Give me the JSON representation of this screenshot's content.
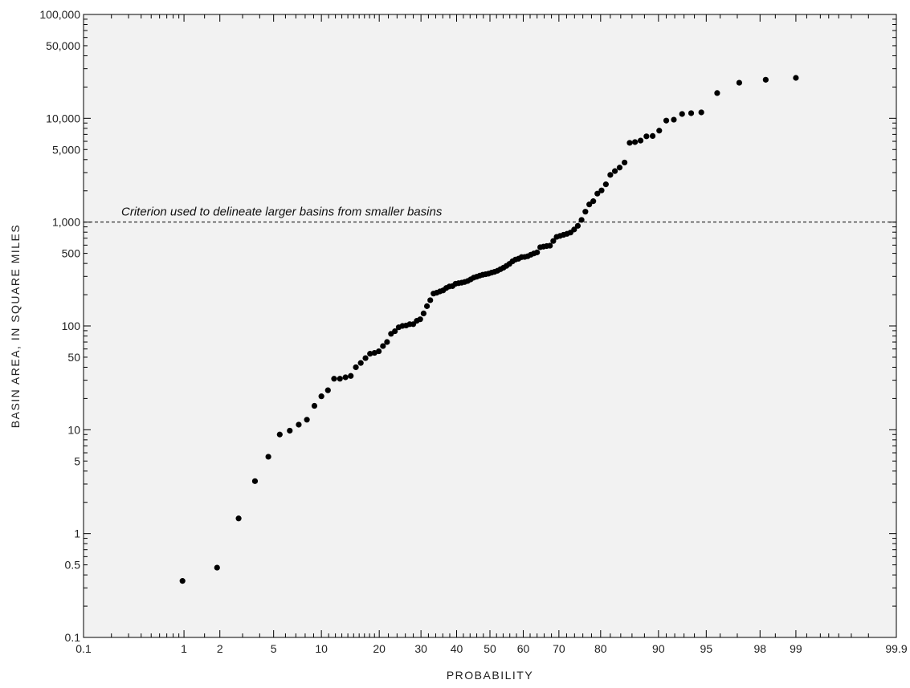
{
  "chart_data": {
    "type": "scatter",
    "title": "",
    "xlabel": "PROBABILITY",
    "ylabel": "BASIN AREA, IN SQUARE MILES",
    "x_scale": "normal-probability",
    "y_scale": "log",
    "xlim": [
      0.1,
      99.9
    ],
    "ylim": [
      0.1,
      100000
    ],
    "x_tick_values": [
      0.1,
      1,
      2,
      5,
      10,
      20,
      30,
      40,
      50,
      60,
      70,
      80,
      90,
      95,
      98,
      99,
      99.9
    ],
    "x_tick_labels": [
      "0.1",
      "1",
      "2",
      "5",
      "10",
      "20",
      "30",
      "40",
      "50",
      "60",
      "70",
      "80",
      "90",
      "95",
      "98",
      "99",
      "99.9"
    ],
    "y_tick_values": [
      0.1,
      0.5,
      1,
      5,
      10,
      50,
      100,
      500,
      1000,
      5000,
      10000,
      50000,
      100000
    ],
    "y_tick_labels": [
      "0.1",
      "0.5",
      "1",
      "5",
      "10",
      "50",
      "100",
      "500",
      "1,000",
      "5,000",
      "10,000",
      "50,000",
      "100,000"
    ],
    "grid": false,
    "background": "#f2f2f2",
    "point_color": "#000000",
    "reference_line": {
      "y": 1000,
      "style": "dashed",
      "label": "Criterion used to delineate larger basins from smaller basins"
    },
    "series": [
      {
        "points": [
          [
            0.97,
            0.35
          ],
          [
            1.9,
            0.47
          ],
          [
            2.8,
            1.4
          ],
          [
            3.7,
            3.2
          ],
          [
            4.6,
            5.5
          ],
          [
            5.5,
            9.0
          ],
          [
            6.4,
            9.8
          ],
          [
            7.3,
            11.2
          ],
          [
            8.2,
            12.5
          ],
          [
            9.1,
            17
          ],
          [
            10.0,
            21
          ],
          [
            10.9,
            24
          ],
          [
            11.8,
            31
          ],
          [
            12.7,
            31
          ],
          [
            13.6,
            32
          ],
          [
            14.5,
            33
          ],
          [
            15.4,
            40
          ],
          [
            16.3,
            44
          ],
          [
            17.2,
            49
          ],
          [
            18.1,
            54
          ],
          [
            19.0,
            55
          ],
          [
            19.9,
            57
          ],
          [
            20.8,
            64
          ],
          [
            21.7,
            70
          ],
          [
            22.6,
            84
          ],
          [
            23.5,
            89
          ],
          [
            24.4,
            97
          ],
          [
            25.3,
            100
          ],
          [
            26.2,
            101
          ],
          [
            27.1,
            104
          ],
          [
            28.0,
            104
          ],
          [
            28.9,
            112
          ],
          [
            29.8,
            116
          ],
          [
            30.7,
            132
          ],
          [
            31.6,
            155
          ],
          [
            32.5,
            177
          ],
          [
            33.4,
            205
          ],
          [
            34.3,
            209
          ],
          [
            35.2,
            215
          ],
          [
            36.1,
            220
          ],
          [
            37.0,
            232
          ],
          [
            37.9,
            240
          ],
          [
            38.8,
            242
          ],
          [
            39.7,
            255
          ],
          [
            40.6,
            258
          ],
          [
            41.5,
            261
          ],
          [
            42.4,
            265
          ],
          [
            43.3,
            271
          ],
          [
            44.2,
            281
          ],
          [
            45.1,
            292
          ],
          [
            46.0,
            298
          ],
          [
            46.9,
            305
          ],
          [
            47.8,
            311
          ],
          [
            48.7,
            315
          ],
          [
            49.6,
            319
          ],
          [
            50.5,
            326
          ],
          [
            51.4,
            332
          ],
          [
            52.3,
            340
          ],
          [
            53.2,
            352
          ],
          [
            54.1,
            364
          ],
          [
            55.0,
            379
          ],
          [
            55.9,
            396
          ],
          [
            56.8,
            419
          ],
          [
            57.7,
            436
          ],
          [
            58.6,
            444
          ],
          [
            59.5,
            460
          ],
          [
            60.4,
            462
          ],
          [
            61.3,
            469
          ],
          [
            62.2,
            485
          ],
          [
            63.1,
            499
          ],
          [
            64.0,
            511
          ],
          [
            64.9,
            573
          ],
          [
            65.8,
            580
          ],
          [
            66.7,
            588
          ],
          [
            67.6,
            593
          ],
          [
            68.5,
            658
          ],
          [
            69.4,
            721
          ],
          [
            70.3,
            736
          ],
          [
            71.2,
            754
          ],
          [
            72.1,
            771
          ],
          [
            73.0,
            793
          ],
          [
            73.9,
            849
          ],
          [
            74.8,
            921
          ],
          [
            75.7,
            1050
          ],
          [
            76.6,
            1260
          ],
          [
            77.5,
            1480
          ],
          [
            78.4,
            1590
          ],
          [
            79.3,
            1880
          ],
          [
            80.2,
            2020
          ],
          [
            81.1,
            2310
          ],
          [
            82.0,
            2850
          ],
          [
            82.9,
            3100
          ],
          [
            83.8,
            3350
          ],
          [
            84.7,
            3750
          ],
          [
            85.6,
            5800
          ],
          [
            86.5,
            5900
          ],
          [
            87.4,
            6100
          ],
          [
            88.3,
            6700
          ],
          [
            89.2,
            6750
          ],
          [
            90.1,
            7600
          ],
          [
            91.0,
            9500
          ],
          [
            91.9,
            9700
          ],
          [
            92.8,
            11000
          ],
          [
            93.7,
            11200
          ],
          [
            94.6,
            11400
          ],
          [
            95.8,
            17500
          ],
          [
            97.1,
            22000
          ],
          [
            98.2,
            23500
          ],
          [
            99.0,
            24500
          ]
        ]
      }
    ]
  }
}
